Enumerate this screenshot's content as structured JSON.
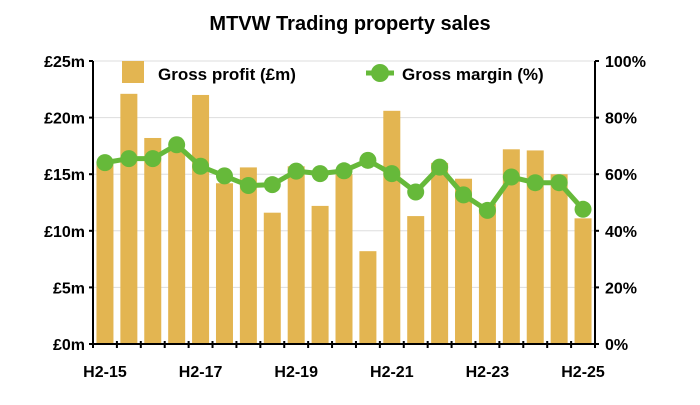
{
  "chart_data": {
    "type": "bar+line",
    "title": "MTVW Trading property sales",
    "categories": [
      "H2-15",
      "H1-16",
      "H2-16",
      "H1-17",
      "H2-17",
      "H1-18",
      "H2-18",
      "H1-19",
      "H2-19",
      "H1-20",
      "H2-20",
      "H1-21",
      "H2-21",
      "H1-22",
      "H2-22",
      "H1-23",
      "H2-23",
      "H1-24",
      "H2-24",
      "H1-25",
      "H2-25"
    ],
    "x_tick_labels": [
      "H2-15",
      "H2-17",
      "H2-19",
      "H2-21",
      "H2-23",
      "H2-25"
    ],
    "series": [
      {
        "name": "Gross profit (£m)",
        "type": "bar",
        "axis": "left",
        "color": "#E3B551",
        "values": [
          16.1,
          22.1,
          18.2,
          17.2,
          22.0,
          14.2,
          15.6,
          11.6,
          15.7,
          12.2,
          15.0,
          8.2,
          20.6,
          11.3,
          16.0,
          14.6,
          12.4,
          17.2,
          17.1,
          15.0,
          11.1
        ]
      },
      {
        "name": "Gross margin (%)",
        "type": "line",
        "axis": "right",
        "color": "#66B93A",
        "values": [
          64.1,
          65.5,
          65.5,
          70.4,
          62.8,
          59.4,
          56.0,
          56.3,
          61.1,
          60.2,
          61.2,
          64.9,
          60.2,
          53.7,
          62.5,
          52.7,
          47.2,
          59.0,
          57.0,
          57.0,
          47.6
        ]
      }
    ],
    "y_left": {
      "ticks": [
        "£0m",
        "£5m",
        "£10m",
        "£15m",
        "£20m",
        "£25m"
      ],
      "range": [
        0,
        25
      ]
    },
    "y_right": {
      "ticks": [
        "0%",
        "20%",
        "40%",
        "60%",
        "80%",
        "100%"
      ],
      "range": [
        0,
        100
      ]
    },
    "grid": true,
    "legend": "top"
  }
}
